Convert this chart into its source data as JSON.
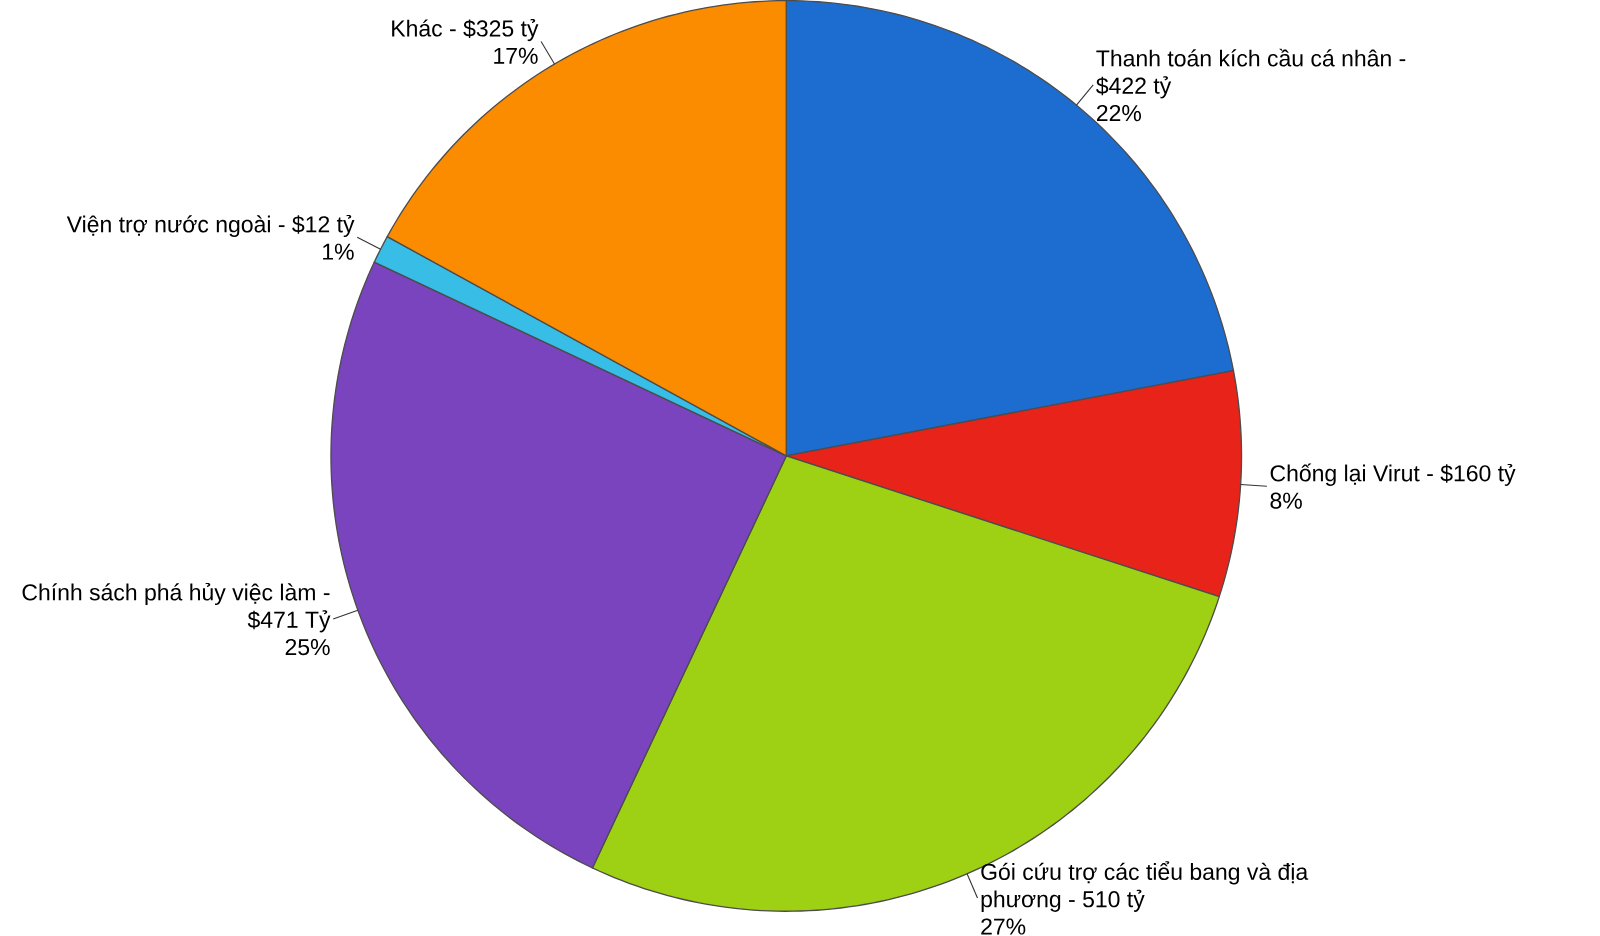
{
  "chart_data": {
    "type": "pie",
    "categories": [
      "Thanh toán kích cầu cá nhân - $422 tỷ",
      "Chống lại Virut - $160 tỷ",
      "Gói cứu trợ các tiểu bang và địa phương - 510 tỷ",
      "Chính sách phá hủy việc làm - $471 Tỷ",
      "Viện trợ nước ngoài - $12 tỷ",
      "Khác - $325 tỷ"
    ],
    "values": [
      22,
      8,
      27,
      25,
      1,
      17
    ],
    "value_labels": [
      "22%",
      "8%",
      "27%",
      "25%",
      "1%",
      "17%"
    ],
    "colors": [
      "#1d6cd0",
      "#e8241a",
      "#9ed013",
      "#7a44bf",
      "#38bde6",
      "#fb8c00"
    ]
  }
}
